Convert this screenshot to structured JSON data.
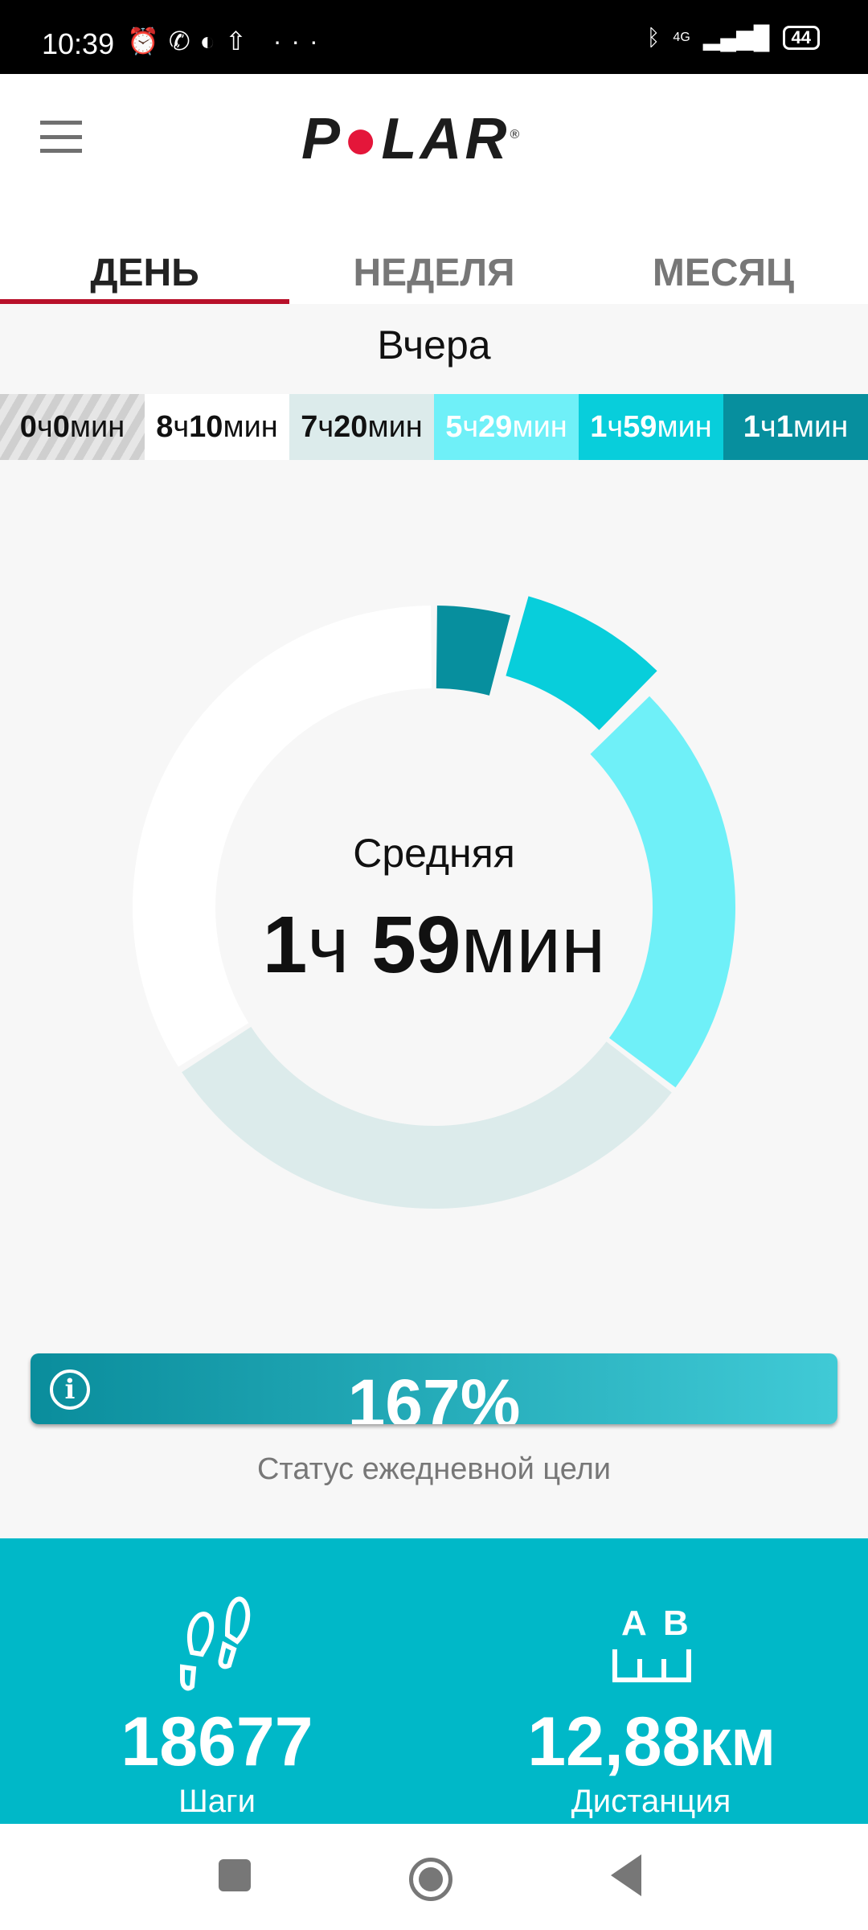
{
  "status_bar": {
    "time": "10:39",
    "icons": [
      "alarm-icon",
      "whatsapp-icon",
      "app-icon",
      "upload-icon",
      "more-icon"
    ],
    "network": "4G",
    "battery": "44"
  },
  "header": {
    "logo": "POLAR",
    "menu_icon": "hamburger-icon"
  },
  "tabs": [
    {
      "label": "ДЕНЬ",
      "active": true
    },
    {
      "label": "НЕДЕЛЯ",
      "active": false
    },
    {
      "label": "МЕСЯЦ",
      "active": false
    }
  ],
  "day_label": "Вчера",
  "activity_levels": [
    {
      "h": "0",
      "m": "0",
      "color": "#d8d8d8",
      "text": "#111",
      "striped": true
    },
    {
      "h": "8",
      "m": "10",
      "color": "#ffffff",
      "text": "#111"
    },
    {
      "h": "7",
      "m": "20",
      "color": "#dcebeb",
      "text": "#111"
    },
    {
      "h": "5",
      "m": "29",
      "color": "#6ff0f8",
      "text": "#ffffff"
    },
    {
      "h": "1",
      "m": "59",
      "color": "#08cedb",
      "text": "#ffffff"
    },
    {
      "h": "1",
      "m": "1",
      "color": "#078f9e",
      "text": "#ffffff"
    }
  ],
  "units": {
    "h": "ч",
    "m": "мин"
  },
  "donut": {
    "selected_label": "Средняя",
    "selected_h": "1",
    "selected_m": "59",
    "segments": [
      {
        "minutes": 61,
        "color": "#078f9e"
      },
      {
        "minutes": 119,
        "color": "#08cedb",
        "selected": true
      },
      {
        "minutes": 329,
        "color": "#6ff0f8"
      },
      {
        "minutes": 440,
        "color": "#dcebeb"
      },
      {
        "minutes": 490,
        "color": "#ffffff"
      }
    ]
  },
  "goal": {
    "percent_label": "167%",
    "progress_percent": 167,
    "caption": "Статус ежедневной цели"
  },
  "stats": {
    "steps": {
      "value": "18677",
      "label": "Шаги"
    },
    "distance": {
      "value": "12,88",
      "unit": "КМ",
      "label": "Дистанция",
      "icon_a": "A",
      "icon_b": "B"
    }
  }
}
